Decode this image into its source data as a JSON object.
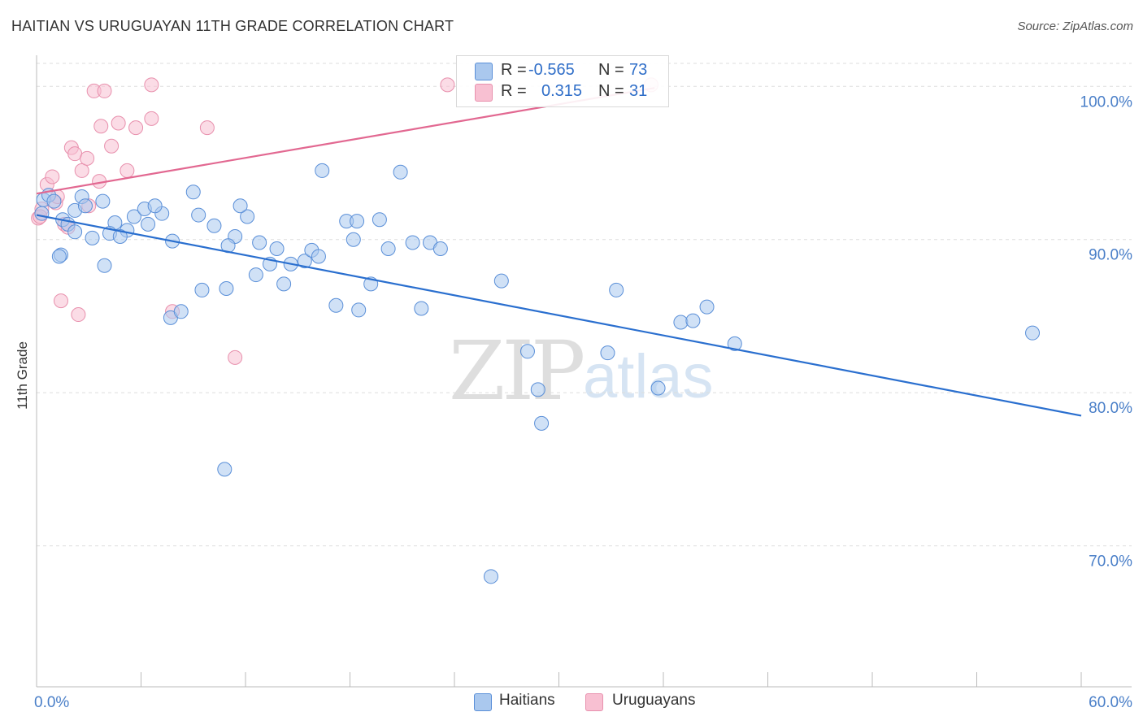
{
  "title": "HAITIAN VS URUGUAYAN 11TH GRADE CORRELATION CHART",
  "source": "Source: ZipAtlas.com",
  "watermark": {
    "zip": "ZIP",
    "atlas": "atlas"
  },
  "colors": {
    "blue_fill": "#aac8ee",
    "blue_stroke": "#5a8fd8",
    "blue_line": "#2a6fcf",
    "pink_fill": "#f8c0d2",
    "pink_stroke": "#e890ad",
    "pink_line": "#e26891",
    "tick_text": "#4a7fc8",
    "grid": "#dddddd"
  },
  "legend": {
    "rows": [
      {
        "r_label": "R =",
        "r_value": "-0.565",
        "n_label": "N =",
        "n_value": "73",
        "color": "#aac8ee",
        "border": "#5a8fd8"
      },
      {
        "r_label": "R =",
        "r_value": "0.315",
        "n_label": "N =",
        "n_value": "31",
        "color": "#f8c0d2",
        "border": "#e890ad"
      }
    ]
  },
  "bottom_legend": [
    {
      "label": "Haitians",
      "color": "#aac8ee",
      "border": "#5a8fd8"
    },
    {
      "label": "Uruguayans",
      "color": "#f8c0d2",
      "border": "#e890ad"
    }
  ],
  "chart_data": {
    "type": "scatter",
    "title": "HAITIAN VS URUGUAYAN 11TH GRADE CORRELATION CHART",
    "xlabel": "",
    "ylabel": "11th Grade",
    "xlim": [
      0,
      60
    ],
    "ylim": [
      60.8,
      101.5
    ],
    "x_ticks": [
      0,
      6,
      12,
      18,
      24,
      30,
      36,
      42,
      48,
      54,
      60
    ],
    "x_tick_labels": [
      {
        "value": 0,
        "label": "0.0%"
      },
      {
        "value": 60,
        "label": "60.0%"
      }
    ],
    "y_ticks": [
      {
        "value": 100,
        "label": "100.0%"
      },
      {
        "value": 90,
        "label": "90.0%"
      },
      {
        "value": 80,
        "label": "80.0%"
      },
      {
        "value": 70,
        "label": "70.0%"
      }
    ],
    "series": [
      {
        "name": "Haitians",
        "r": -0.565,
        "n": 73,
        "trend": {
          "x": [
            0,
            60
          ],
          "y": [
            91.6,
            78.5
          ]
        },
        "points": [
          [
            0.4,
            92.6
          ],
          [
            0.7,
            92.9
          ],
          [
            1.0,
            92.5
          ],
          [
            0.3,
            91.7
          ],
          [
            1.5,
            91.3
          ],
          [
            2.2,
            91.9
          ],
          [
            1.8,
            91.0
          ],
          [
            2.6,
            92.8
          ],
          [
            3.8,
            92.5
          ],
          [
            5.6,
            91.5
          ],
          [
            6.2,
            92.0
          ],
          [
            7.2,
            91.7
          ],
          [
            4.5,
            91.1
          ],
          [
            5.2,
            90.6
          ],
          [
            2.8,
            92.2
          ],
          [
            1.4,
            89.0
          ],
          [
            1.3,
            88.9
          ],
          [
            3.2,
            90.1
          ],
          [
            4.2,
            90.4
          ],
          [
            6.4,
            91.0
          ],
          [
            6.8,
            92.2
          ],
          [
            7.8,
            89.9
          ],
          [
            9.0,
            93.1
          ],
          [
            9.3,
            91.6
          ],
          [
            10.2,
            90.9
          ],
          [
            11.4,
            90.2
          ],
          [
            11.0,
            89.6
          ],
          [
            12.1,
            91.5
          ],
          [
            11.7,
            92.2
          ],
          [
            12.6,
            87.7
          ],
          [
            12.8,
            89.8
          ],
          [
            13.4,
            88.4
          ],
          [
            13.8,
            89.4
          ],
          [
            14.6,
            88.4
          ],
          [
            15.4,
            88.6
          ],
          [
            15.8,
            89.3
          ],
          [
            16.2,
            88.9
          ],
          [
            14.2,
            87.1
          ],
          [
            16.4,
            94.5
          ],
          [
            17.2,
            85.7
          ],
          [
            17.8,
            91.2
          ],
          [
            18.2,
            90.0
          ],
          [
            18.4,
            91.2
          ],
          [
            18.5,
            85.4
          ],
          [
            19.2,
            87.1
          ],
          [
            19.7,
            91.3
          ],
          [
            20.2,
            89.4
          ],
          [
            20.9,
            94.4
          ],
          [
            21.6,
            89.8
          ],
          [
            22.6,
            89.8
          ],
          [
            23.2,
            89.4
          ],
          [
            22.1,
            85.5
          ],
          [
            7.7,
            84.9
          ],
          [
            8.3,
            85.3
          ],
          [
            9.5,
            86.7
          ],
          [
            10.9,
            86.8
          ],
          [
            3.9,
            88.3
          ],
          [
            10.8,
            75.0
          ],
          [
            26.7,
            87.3
          ],
          [
            28.2,
            82.7
          ],
          [
            28.8,
            80.2
          ],
          [
            29.0,
            78.0
          ],
          [
            32.8,
            82.6
          ],
          [
            33.3,
            86.7
          ],
          [
            35.7,
            80.3
          ],
          [
            37.0,
            84.6
          ],
          [
            37.7,
            84.7
          ],
          [
            38.5,
            85.6
          ],
          [
            40.1,
            83.2
          ],
          [
            57.2,
            83.9
          ],
          [
            26.1,
            68.0
          ],
          [
            4.8,
            90.2
          ],
          [
            2.2,
            90.5
          ]
        ]
      },
      {
        "name": "Uruguayans",
        "r": 0.315,
        "n": 31,
        "trend": {
          "x": [
            0,
            35.5
          ],
          "y": [
            93.0,
            99.9
          ]
        },
        "points": [
          [
            0.1,
            91.4
          ],
          [
            0.3,
            92.0
          ],
          [
            0.6,
            93.6
          ],
          [
            0.9,
            94.1
          ],
          [
            1.1,
            92.4
          ],
          [
            0.2,
            91.5
          ],
          [
            1.6,
            91.0
          ],
          [
            1.8,
            90.8
          ],
          [
            2.0,
            96.0
          ],
          [
            2.2,
            95.6
          ],
          [
            2.6,
            94.5
          ],
          [
            2.9,
            95.3
          ],
          [
            3.3,
            99.7
          ],
          [
            3.7,
            97.4
          ],
          [
            3.6,
            93.8
          ],
          [
            3.9,
            99.7
          ],
          [
            4.3,
            96.1
          ],
          [
            4.7,
            97.6
          ],
          [
            5.2,
            94.5
          ],
          [
            5.7,
            97.3
          ],
          [
            6.6,
            100.1
          ],
          [
            6.6,
            97.9
          ],
          [
            3.0,
            92.2
          ],
          [
            9.8,
            97.3
          ],
          [
            11.4,
            82.3
          ],
          [
            7.8,
            85.3
          ],
          [
            1.4,
            86.0
          ],
          [
            2.4,
            85.1
          ],
          [
            23.6,
            100.1
          ],
          [
            35.3,
            100.1
          ],
          [
            1.2,
            92.8
          ]
        ]
      }
    ]
  }
}
